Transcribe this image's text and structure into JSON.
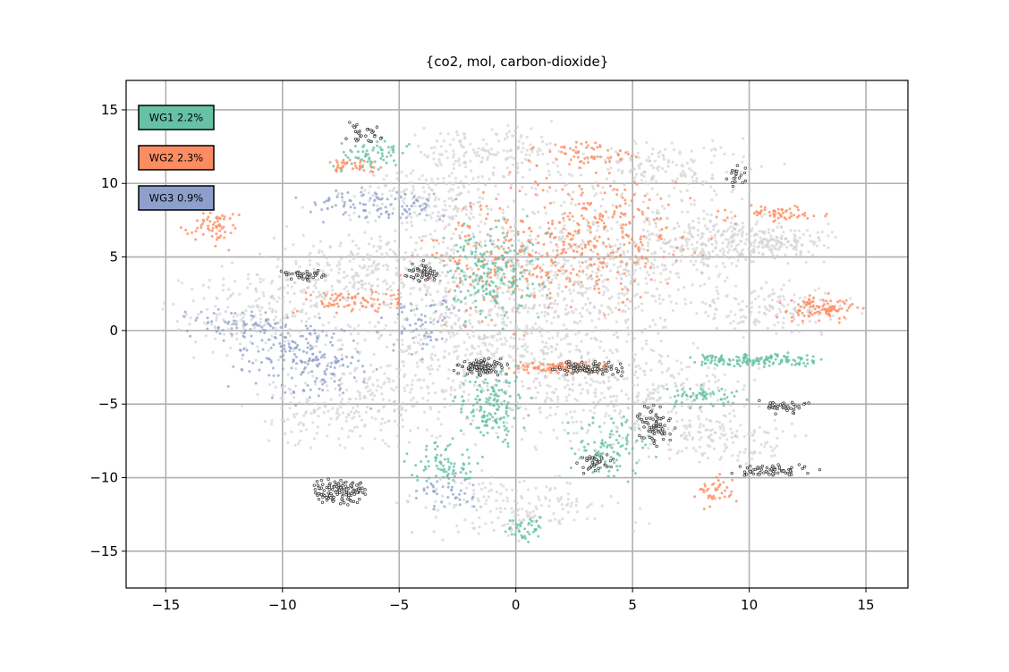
{
  "chart_data": {
    "type": "scatter",
    "title": "{co2, mol, carbon-dioxide}",
    "xlabel": "",
    "ylabel": "",
    "xlim": [
      -16.7,
      16.8
    ],
    "ylim": [
      -17.5,
      17.0
    ],
    "xticks": [
      -15,
      -10,
      -5,
      0,
      5,
      10,
      15
    ],
    "yticks": [
      -15,
      -10,
      -5,
      0,
      5,
      10,
      15
    ],
    "xtick_labels": [
      "−15",
      "−10",
      "−5",
      "0",
      "5",
      "10",
      "15"
    ],
    "ytick_labels": [
      "−15",
      "−10",
      "−5",
      "0",
      "5",
      "10",
      "15"
    ],
    "grid": true,
    "legend_position": "upper-left",
    "legend": [
      {
        "label": "WG1 2.2%",
        "color": "#66c2a5"
      },
      {
        "label": "WG2 2.3%",
        "color": "#fc8d62"
      },
      {
        "label": "WG3 0.9%",
        "color": "#8da0cb"
      }
    ],
    "series": [
      {
        "name": "WG1 2.2%",
        "color": "#66c2a5"
      },
      {
        "name": "WG2 2.3%",
        "color": "#fc8d62"
      },
      {
        "name": "WG3 0.9%",
        "color": "#8da0cb"
      }
    ],
    "background_color": "#d3d3d3",
    "highlight_color": "#333333"
  }
}
